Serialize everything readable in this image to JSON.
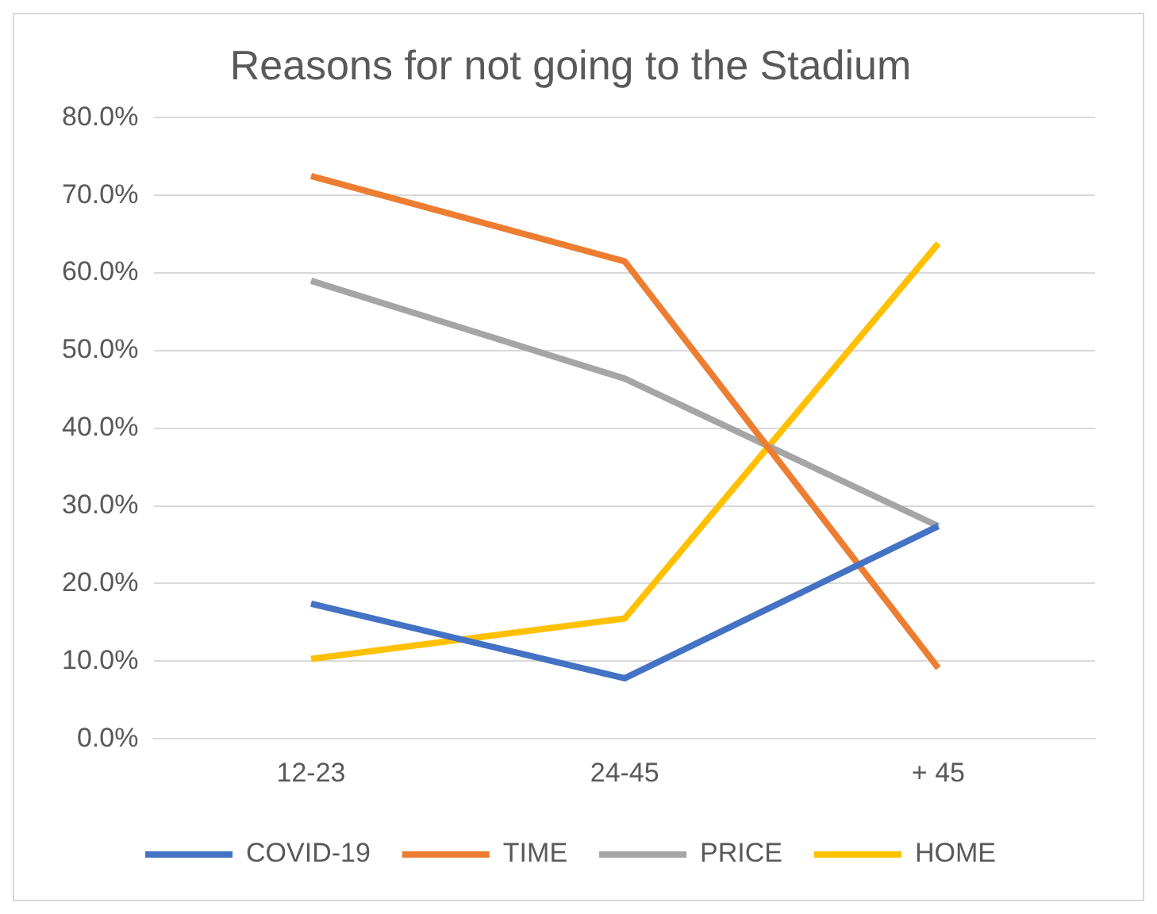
{
  "chart_data": {
    "type": "line",
    "title": "Reasons for not going to the Stadium",
    "categories": [
      "12-23",
      "24-45",
      "+ 45"
    ],
    "series": [
      {
        "name": "COVID-19",
        "color": "#4472c4",
        "values": [
          17.4,
          7.8,
          27.4
        ]
      },
      {
        "name": "TIME",
        "color": "#ed7d31",
        "values": [
          72.5,
          61.5,
          9.1
        ]
      },
      {
        "name": "PRICE",
        "color": "#a5a5a5",
        "values": [
          59.0,
          46.4,
          27.4
        ]
      },
      {
        "name": "HOME",
        "color": "#ffc000",
        "values": [
          10.3,
          15.5,
          63.8
        ]
      }
    ],
    "ylim": [
      0,
      80
    ],
    "yticks": [
      {
        "value": 0,
        "label": "0.0%"
      },
      {
        "value": 10,
        "label": "10.0%"
      },
      {
        "value": 20,
        "label": "20.0%"
      },
      {
        "value": 30,
        "label": "30.0%"
      },
      {
        "value": 40,
        "label": "40.0%"
      },
      {
        "value": 50,
        "label": "50.0%"
      },
      {
        "value": 60,
        "label": "60.0%"
      },
      {
        "value": 70,
        "label": "70.0%"
      },
      {
        "value": 80,
        "label": "80.0%"
      }
    ],
    "grid": "y",
    "legend": "bottom",
    "marker": "none",
    "line_style": "solid"
  }
}
